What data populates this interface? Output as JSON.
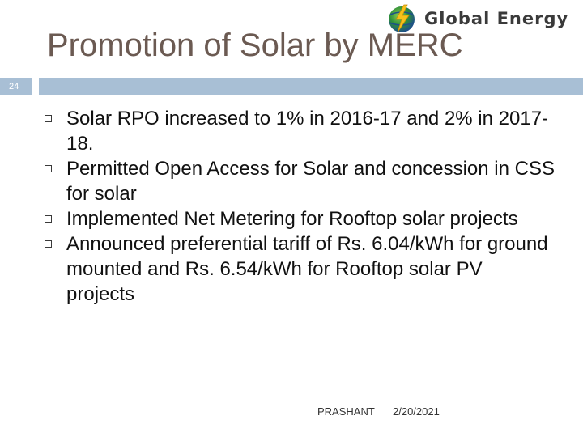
{
  "logo": {
    "text": "Global Energy",
    "icon": "globe-lightning-icon"
  },
  "slide": {
    "title": "Promotion of Solar by MERC",
    "number": "24",
    "bullets": [
      "Solar RPO increased to 1% in 2016-17 and 2% in 2017-18.",
      "Permitted Open Access for Solar and concession in CSS for solar",
      "Implemented Net Metering for Rooftop solar projects",
      "Announced preferential tariff of Rs. 6.04/kWh for ground mounted and Rs. 6.54/kWh for Rooftop solar PV projects"
    ]
  },
  "footer": {
    "author": "PRASHANT",
    "date": "2/20/2021"
  },
  "colors": {
    "accent_bar": "#a8bfd5",
    "title": "#6b5a52",
    "logo_text": "#3a3a3a"
  }
}
